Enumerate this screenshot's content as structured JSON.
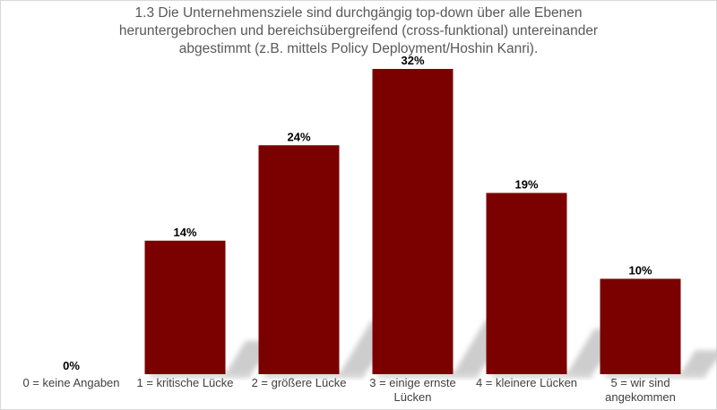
{
  "chart_data": {
    "type": "bar",
    "title": "1.3 Die Unternehmensziele sind durchgängig top-down über alle Ebenen heruntergebrochen und bereichsübergreifend (cross-funktional) untereinander abgestimmt (z.B. mittels Policy Deployment/Hoshin Kanri).",
    "title_lines": [
      "1.3 Die Unternehmensziele sind durchgängig top-down über alle Ebenen",
      "heruntergebrochen und bereichsübergreifend (cross-funktional) untereinander",
      "abgestimmt (z.B. mittels Policy Deployment/Hoshin Kanri)."
    ],
    "categories": [
      "0 = keine Angaben",
      "1 = kritische Lücke",
      "2 = größere Lücke",
      "3 = einige ernste Lücken",
      "4 = kleinere Lücken",
      "5 = wir sind angekommen"
    ],
    "category_lines": [
      [
        "0 = keine Angaben"
      ],
      [
        "1 = kritische Lücke"
      ],
      [
        "2 = größere Lücke"
      ],
      [
        "3 = einige ernste",
        "Lücken"
      ],
      [
        "4 = kleinere Lücken"
      ],
      [
        "5 = wir sind",
        "angekommen"
      ]
    ],
    "values": [
      0,
      14,
      24,
      32,
      19,
      10
    ],
    "data_labels": [
      "0%",
      "14%",
      "24%",
      "32%",
      "19%",
      "10%"
    ],
    "unit": "%",
    "ylim": [
      0,
      32
    ],
    "grid": false,
    "legend": "none",
    "bar_color": "#7b0000",
    "shadow_color": "#c8c8c8",
    "title_color": "#595959",
    "border_color": "#d9d9d9"
  }
}
